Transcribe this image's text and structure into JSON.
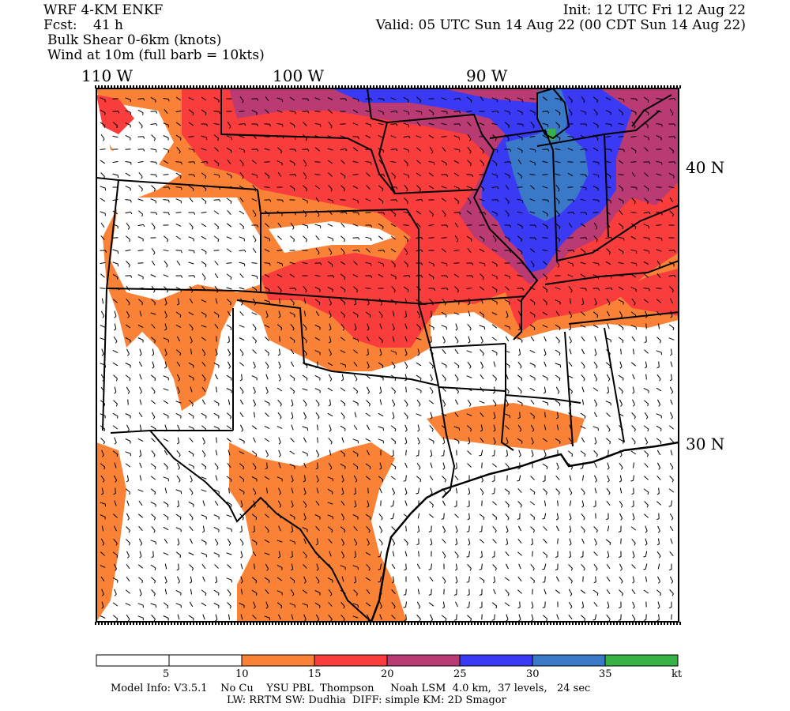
{
  "header": {
    "model": "WRF 4-KM ENKF",
    "fcst_label": "Fcst:",
    "fcst_value": "41 h",
    "field": "Bulk Shear 0-6km (knots)",
    "wind": "Wind at 10m (full barb = 10kts)",
    "init": "Init: 12 UTC Fri 12 Aug 22",
    "valid": "Valid: 05 UTC Sun 14 Aug 22 (00 CDT Sun 14 Aug 22)"
  },
  "axes": {
    "lon_labels": [
      "110 W",
      "100 W",
      "90 W"
    ],
    "lat_labels": [
      "40 N",
      "30 N"
    ]
  },
  "colorbar": {
    "colors": [
      "#ffffff",
      "#ffffff",
      "#f98237",
      "#f93c3c",
      "#ba3b73",
      "#3a3af5",
      "#3a78c8",
      "#38b245"
    ],
    "ticks": [
      "5",
      "10",
      "15",
      "20",
      "25",
      "30",
      "35"
    ],
    "unit": "kt"
  },
  "footer": {
    "line1": "Model Info: V3.5.1    No Cu    YSU PBL  Thompson     Noah LSM  4.0 km,  37 levels,   24 sec",
    "line2": "LW: RRTM SW: Dudhia  DIFF: simple KM: 2D Smagor"
  }
}
